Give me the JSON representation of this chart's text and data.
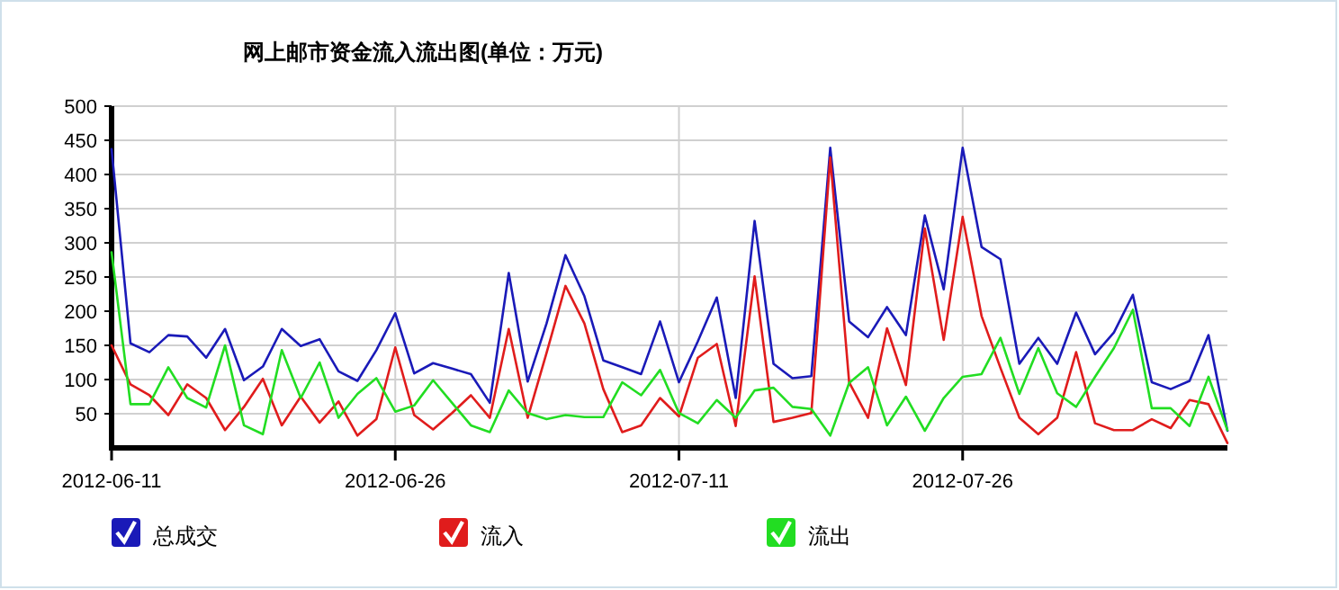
{
  "chart_data": {
    "type": "line",
    "title": "网上邮市资金流入流出图(单位：万元)",
    "x": [
      "2012-06-11",
      "2012-06-12",
      "2012-06-13",
      "2012-06-14",
      "2012-06-15",
      "2012-06-16",
      "2012-06-17",
      "2012-06-18",
      "2012-06-19",
      "2012-06-20",
      "2012-06-21",
      "2012-06-22",
      "2012-06-23",
      "2012-06-24",
      "2012-06-25",
      "2012-06-26",
      "2012-06-27",
      "2012-06-28",
      "2012-06-29",
      "2012-06-30",
      "2012-07-01",
      "2012-07-02",
      "2012-07-03",
      "2012-07-04",
      "2012-07-05",
      "2012-07-06",
      "2012-07-07",
      "2012-07-08",
      "2012-07-09",
      "2012-07-10",
      "2012-07-11",
      "2012-07-12",
      "2012-07-13",
      "2012-07-14",
      "2012-07-15",
      "2012-07-16",
      "2012-07-17",
      "2012-07-18",
      "2012-07-19",
      "2012-07-20",
      "2012-07-21",
      "2012-07-22",
      "2012-07-23",
      "2012-07-24",
      "2012-07-25",
      "2012-07-26",
      "2012-07-27",
      "2012-07-28",
      "2012-07-29",
      "2012-07-30",
      "2012-07-31",
      "2012-08-01",
      "2012-08-02",
      "2012-08-03",
      "2012-08-04",
      "2012-08-05",
      "2012-08-06",
      "2012-08-07",
      "2012-08-08",
      "2012-08-09"
    ],
    "series": [
      {
        "name": "总成交",
        "color": "#1a1ab8",
        "values": [
          437,
          153,
          140,
          165,
          163,
          132,
          174,
          99,
          119,
          174,
          149,
          159,
          112,
          98,
          143,
          197,
          109,
          124,
          116,
          108,
          66,
          256,
          97,
          182,
          282,
          222,
          128,
          118,
          108,
          185,
          96,
          156,
          220,
          73,
          332,
          123,
          102,
          105,
          439,
          185,
          162,
          206,
          165,
          340,
          232,
          439,
          294,
          276,
          123,
          161,
          123,
          198,
          137,
          169,
          224,
          96,
          86,
          98,
          165,
          25
        ]
      },
      {
        "name": "流入",
        "color": "#e01c1c",
        "values": [
          150,
          93,
          77,
          48,
          93,
          73,
          26,
          60,
          101,
          33,
          75,
          37,
          68,
          18,
          42,
          147,
          48,
          27,
          51,
          77,
          44,
          174,
          44,
          139,
          237,
          182,
          86,
          23,
          33,
          73,
          46,
          132,
          152,
          32,
          251,
          38,
          44,
          51,
          425,
          96,
          44,
          175,
          92,
          321,
          158,
          338,
          193,
          117,
          44,
          20,
          44,
          140,
          36,
          26,
          26,
          42,
          29,
          70,
          64,
          7
        ]
      },
      {
        "name": "流出",
        "color": "#22dd22",
        "values": [
          286,
          64,
          64,
          118,
          73,
          59,
          150,
          33,
          20,
          143,
          73,
          125,
          44,
          79,
          102,
          53,
          62,
          99,
          66,
          33,
          23,
          84,
          51,
          42,
          48,
          45,
          45,
          96,
          77,
          114,
          51,
          36,
          70,
          44,
          84,
          88,
          60,
          57,
          18,
          95,
          118,
          33,
          75,
          25,
          73,
          104,
          108,
          161,
          79,
          146,
          80,
          60,
          104,
          146,
          202,
          58,
          58,
          32,
          104,
          26
        ]
      }
    ],
    "xlim": [
      "2012-06-11",
      "2012-08-09"
    ],
    "xticks": [
      "2012-06-11",
      "2012-06-26",
      "2012-07-11",
      "2012-07-26"
    ],
    "ylim": [
      0,
      500
    ],
    "yticks": [
      50,
      100,
      150,
      200,
      250,
      300,
      350,
      400,
      450,
      500
    ],
    "grid": true,
    "legend": "bottom",
    "marker": "none",
    "line_style": "solid"
  }
}
